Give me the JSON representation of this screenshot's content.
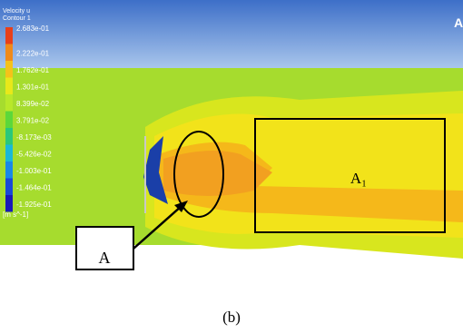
{
  "legend": {
    "title": "Velocity u",
    "subtitle": "Contour 1",
    "levels": [
      "2.683e-01",
      "2.222e-01",
      "1.762e-01",
      "1.301e-01",
      "8.399e-02",
      "3.791e-02",
      "-8.173e-03",
      "-5.426e-02",
      "-1.003e-01",
      "-1.464e-01",
      "-1.925e-01"
    ],
    "unit": "[m s^-1]"
  },
  "logo": "A",
  "annotations": {
    "region_a": "A",
    "region_a1": "A₁"
  },
  "caption": "(b)"
}
